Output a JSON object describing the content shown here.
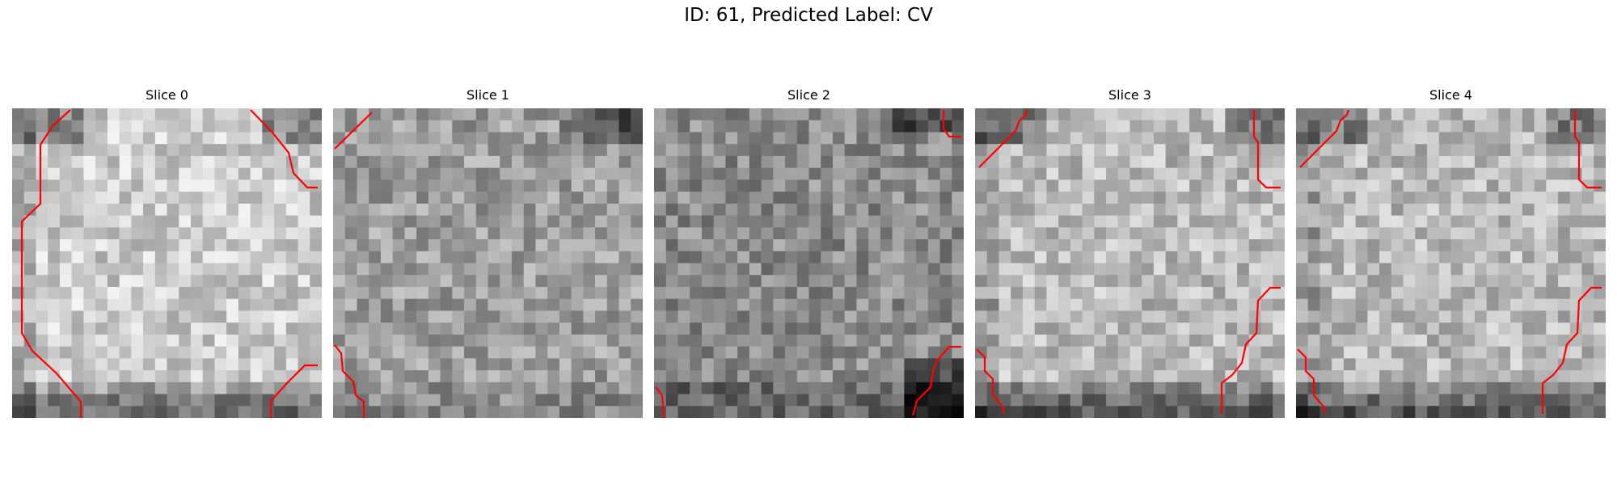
{
  "figure": {
    "title": "ID: 61, Predicted Label: CV"
  },
  "colors": {
    "background": "#ffffff",
    "contour": "#ff0000",
    "colormap": "grayscale"
  },
  "panels": [
    {
      "title": "Slice 0",
      "icon": "ct-slice-image",
      "base": 0.8,
      "rim": "low-bottom",
      "grid_cells": 26
    },
    {
      "title": "Slice 1",
      "icon": "ct-slice-image",
      "base": 0.62,
      "rim": "low-top-right",
      "grid_cells": 26
    },
    {
      "title": "Slice 2",
      "icon": "ct-slice-image",
      "base": 0.55,
      "rim": "low-corners",
      "grid_cells": 26
    },
    {
      "title": "Slice 3",
      "icon": "ct-slice-image",
      "base": 0.73,
      "rim": "low-bottom",
      "grid_cells": 26
    },
    {
      "title": "Slice 4",
      "icon": "ct-slice-image",
      "base": 0.73,
      "rim": "low-bottom",
      "grid_cells": 26
    }
  ]
}
